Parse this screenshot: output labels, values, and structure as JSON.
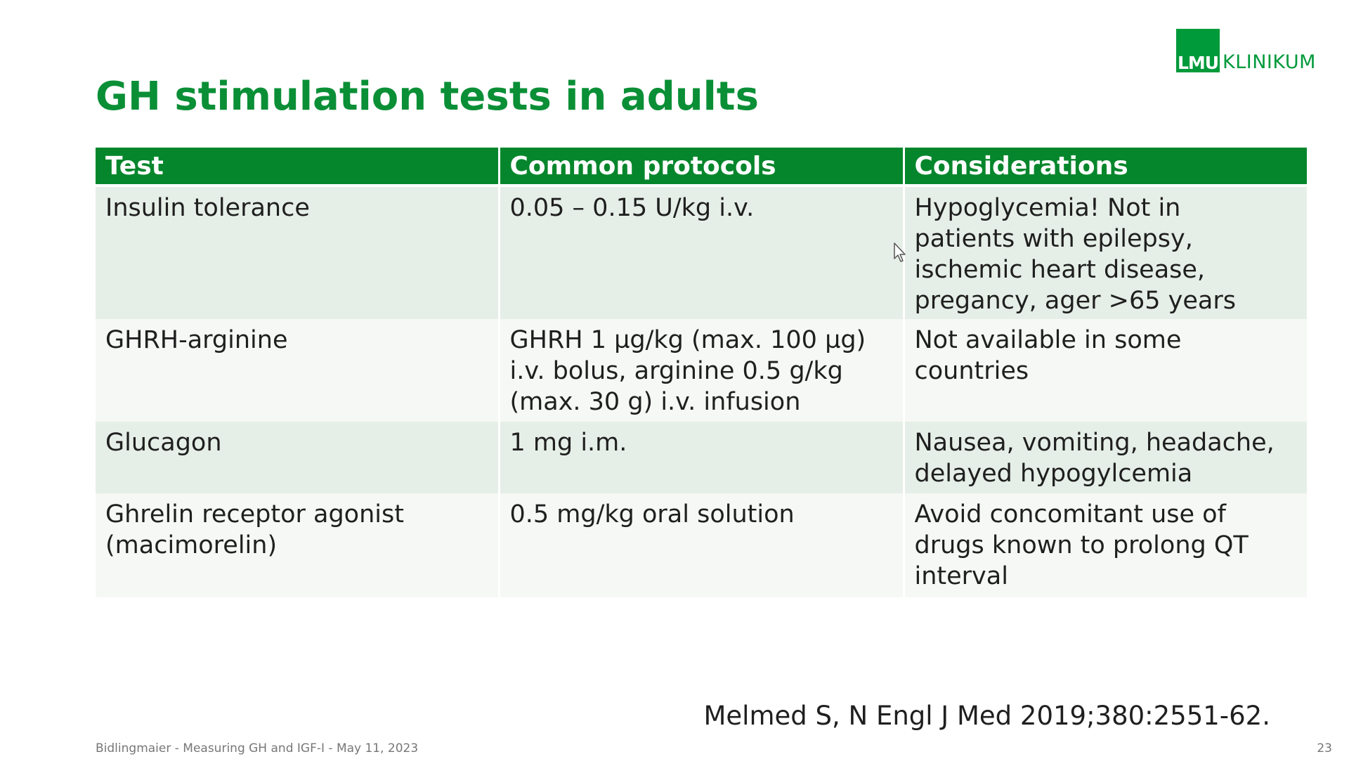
{
  "logo": {
    "mark": "LMU",
    "text": "KLINIKUM",
    "color": "#009a3b"
  },
  "title": "GH stimulation tests in adults",
  "table": {
    "headers": [
      "Test",
      "Common protocols",
      "Considerations"
    ],
    "rows": [
      {
        "test": "Insulin tolerance",
        "protocol": [
          "0.05 – 0.15 U/kg i.v."
        ],
        "considerations": [
          "Hypoglycemia! Not in",
          "patients with epilepsy,",
          "ischemic heart disease,",
          "pregancy, ager >65 years"
        ]
      },
      {
        "test": "GHRH-arginine",
        "protocol": [
          "GHRH 1 µg/kg (max. 100 µg)",
          "i.v. bolus, arginine 0.5 g/kg",
          "(max. 30 g) i.v. infusion"
        ],
        "considerations": [
          "Not available in some",
          "countries"
        ]
      },
      {
        "test": "Glucagon",
        "protocol": [
          "1 mg i.m."
        ],
        "considerations": [
          "Nausea, vomiting, headache,",
          "delayed hypogylcemia"
        ]
      },
      {
        "test_lines": [
          "Ghrelin receptor agonist",
          "(macimorelin)"
        ],
        "protocol": [
          "0.5 mg/kg oral solution"
        ],
        "considerations": [
          "Avoid concomitant use of",
          "drugs known to prolong QT",
          "interval"
        ]
      }
    ]
  },
  "citation": "Melmed S, N Engl J Med 2019;380:2551-62.",
  "footer": "Bidlingmaier - Measuring GH and IGF-I - May 11, 2023",
  "page_number": "23",
  "colors": {
    "title": "#0a8f36",
    "header_bg": "#06862c",
    "row_odd": "#e6efe7",
    "row_even": "#f5f8f5"
  },
  "icons": {
    "cursor": "mouse-pointer-icon"
  }
}
